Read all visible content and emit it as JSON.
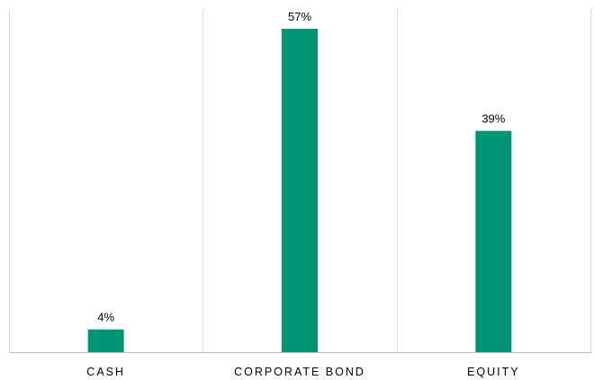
{
  "chart_data": {
    "type": "bar",
    "categories": [
      "CASH",
      "CORPORATE BOND",
      "EQUITY"
    ],
    "values": [
      4,
      57,
      39
    ],
    "value_labels": [
      "4%",
      "57%",
      "39%"
    ],
    "unit": "%",
    "ylim": [
      0,
      60
    ],
    "grid": "vertical category separators",
    "legend": "none",
    "bar_color": "#009673",
    "gridline_color": "#d9d9d9",
    "axis_color": "#bfbfbf"
  }
}
